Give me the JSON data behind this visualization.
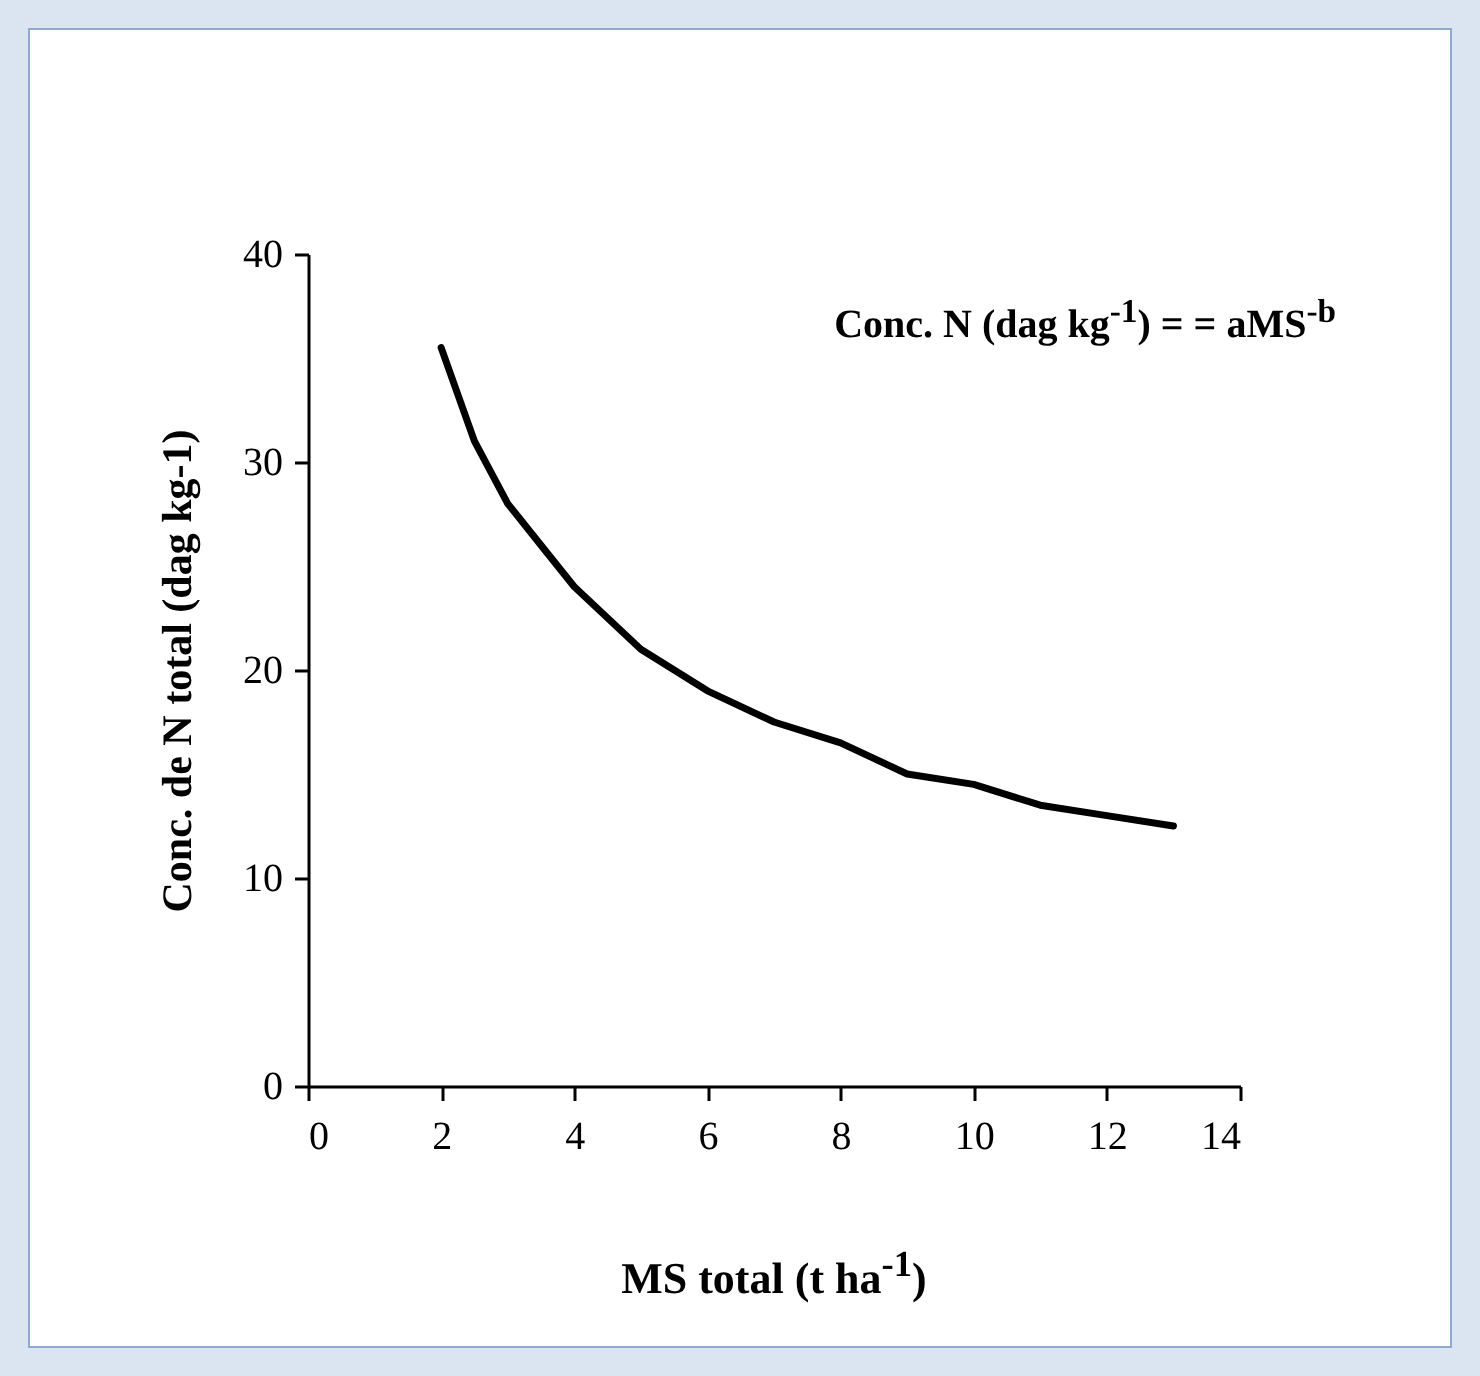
{
  "chart_data": {
    "type": "line",
    "xlabel": "MS total (t ha$^{-1}$)",
    "ylabel": "Conc. de N total (dag kg-1)",
    "annotations": [
      "Conc. N (dag kg$^{-1}$) =  = aMS$^{-b}$"
    ],
    "x": [
      2,
      2.5,
      3,
      3.5,
      4,
      5,
      6,
      7,
      8,
      9,
      10,
      11,
      12,
      13
    ],
    "series": [
      {
        "color": "#000000",
        "values": [
          35.5,
          31,
          28,
          26,
          24,
          21,
          19,
          17.5,
          16.5,
          15,
          14.5,
          13.5,
          13,
          12.5
        ]
      }
    ],
    "xlim": [
      0,
      14
    ],
    "xticks": [
      0,
      2,
      4,
      6,
      8,
      10,
      12,
      14
    ],
    "ylim": [
      0,
      40
    ],
    "yticks": [
      0,
      10,
      20,
      30,
      40
    ],
    "line_style": "solid",
    "marker": "none"
  }
}
